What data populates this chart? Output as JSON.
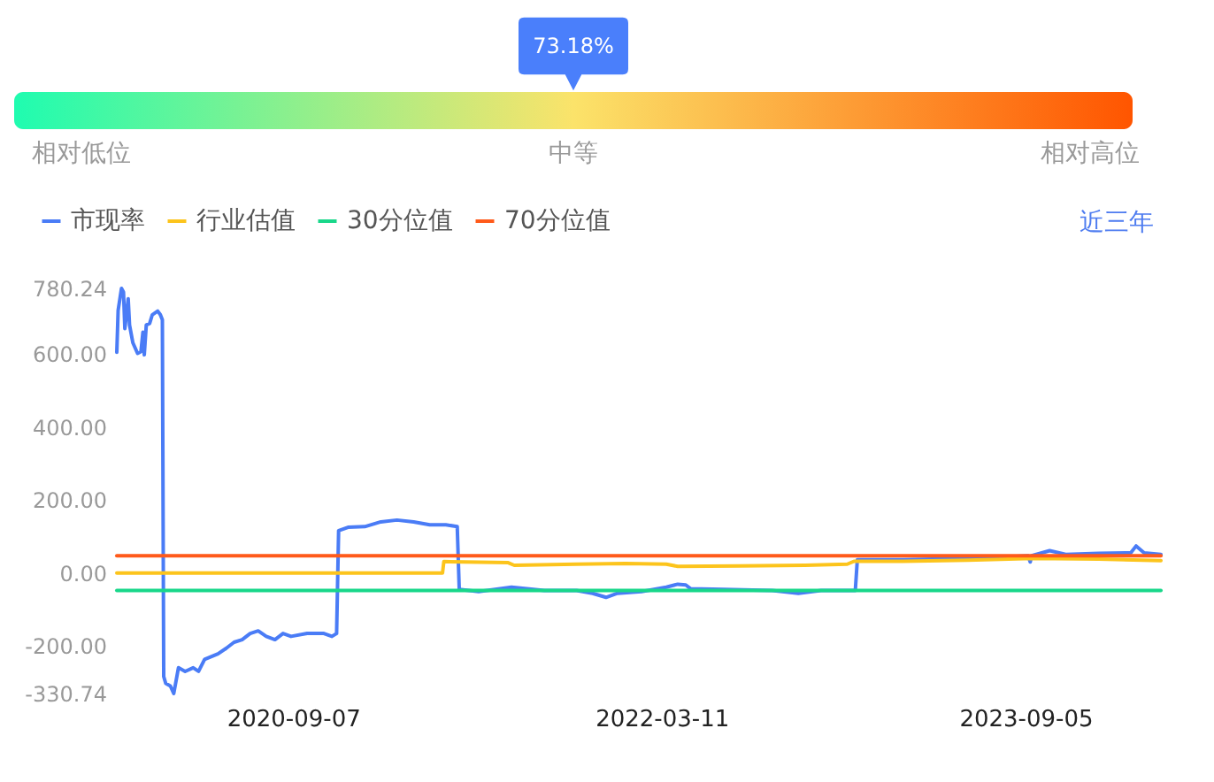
{
  "chart_data": [
    {
      "type": "other",
      "categories": [
        "相对低位",
        "中等",
        "相对高位"
      ],
      "colors": [
        "#1ffcb0",
        "#fbe36a",
        "#ff5500"
      ],
      "color": "#4a7ffb",
      "annotations": [
        {
          "text": "73.18%",
          "x": "中等"
        }
      ]
    },
    {
      "type": "line",
      "legend": "top left",
      "grid": false,
      "xlim": [
        "2019-12-19",
        "2024-03-25"
      ],
      "xticks": [
        "2020-09-07",
        "2022-03-11",
        "2023-09-05"
      ],
      "ylim": [
        -330.74,
        780.24
      ],
      "yticks": [
        780.24,
        {
          "value": 600,
          "label": "600.00"
        },
        {
          "value": 400,
          "label": "400.00"
        },
        {
          "value": 200,
          "label": "200.00"
        },
        {
          "value": 0,
          "label": "0.00"
        },
        {
          "value": -200,
          "label": "-200.00"
        },
        -330.74
      ],
      "annotations": [
        "近三年"
      ],
      "series": [
        {
          "name": "市现率",
          "color": "#4a7cf6",
          "x": [
            "2019-12-19",
            "2019-12-21",
            "2019-12-26",
            "2019-12-29",
            "2019-12-31",
            "2020-01-05",
            "2020-01-07",
            "2020-01-12",
            "2020-01-19",
            "2020-01-24",
            "2020-01-27",
            "2020-01-29",
            "2020-02-01",
            "2020-02-06",
            "2020-02-10",
            "2020-02-18",
            "2020-02-22",
            "2020-02-25",
            "2020-02-27",
            "2020-03-01",
            "2020-03-08",
            "2020-03-13",
            "2020-03-20",
            "2020-03-30",
            "2020-04-11",
            "2020-04-19",
            "2020-04-28",
            "2020-05-18",
            "2020-05-30",
            "2020-06-11",
            "2020-06-23",
            "2020-07-05",
            "2020-07-17",
            "2020-07-29",
            "2020-08-11",
            "2020-08-23",
            "2020-09-04",
            "2020-09-28",
            "2020-10-23",
            "2020-11-04",
            "2020-11-11",
            "2020-11-14",
            "2020-11-28",
            "2020-12-23",
            "2021-01-16",
            "2021-02-09",
            "2021-03-06",
            "2021-03-30",
            "2021-04-23",
            "2021-05-10",
            "2021-05-13",
            "2021-06-11",
            "2021-07-30",
            "2021-09-17",
            "2021-11-04",
            "2021-11-28",
            "2021-12-18",
            "2022-01-04",
            "2022-02-09",
            "2022-03-18",
            "2022-04-04",
            "2022-04-16",
            "2022-04-23",
            "2022-06-11",
            "2022-08-23",
            "2022-10-01",
            "2022-11-04",
            "2022-12-25",
            "2022-12-28",
            "2023-03-06",
            "2023-05-18",
            "2023-07-30",
            "2023-09-09",
            "2023-09-12",
            "2023-09-14",
            "2023-10-11",
            "2023-11-04",
            "2023-12-23",
            "2024-02-09",
            "2024-02-17",
            "2024-02-29",
            "2024-03-25"
          ],
          "values": [
            605,
            720,
            780.24,
            770,
            670,
            752,
            680,
            631,
            602,
            607,
            660,
            598,
            680,
            684,
            708,
            718,
            708,
            694,
            -284,
            -303,
            -310,
            -330.74,
            -260,
            -270,
            -260,
            -270,
            -237,
            -222,
            -207,
            -190,
            -183,
            -166,
            -159,
            -174,
            -183,
            -166,
            -174,
            -166,
            -166,
            -174,
            -166,
            116,
            125,
            127,
            140,
            145,
            140,
            132,
            132,
            127,
            -45,
            -51,
            -39,
            -48,
            -48,
            -56,
            -67,
            -56,
            -51,
            -39,
            -31,
            -33,
            -43,
            -45,
            -48,
            -56,
            -48,
            -48,
            36,
            36,
            39,
            43,
            47,
            30,
            47,
            61,
            51,
            54,
            55,
            74,
            55,
            51
          ]
        },
        {
          "name": "行业估值",
          "color": "#fcc41c",
          "x": [
            "2019-12-19",
            "2021-04-18",
            "2021-04-20",
            "2021-07-25",
            "2021-08-03",
            "2021-11-04",
            "2022-01-16",
            "2022-03-18",
            "2022-04-04",
            "2022-07-05",
            "2022-10-11",
            "2022-12-13",
            "2022-12-23",
            "2023-03-06",
            "2023-06-11",
            "2023-09-16",
            "2023-12-23",
            "2024-03-25"
          ],
          "values": [
            0,
            0,
            31,
            28,
            21,
            24,
            26,
            24,
            18,
            19,
            21,
            24,
            32,
            32,
            35,
            40,
            38,
            34
          ]
        },
        {
          "name": "30分位值",
          "color": "#19d78a",
          "x": [
            "2019-12-19",
            "2024-03-25"
          ],
          "values": [
            -48,
            -48
          ]
        },
        {
          "name": "70分位值",
          "color": "#ff5a1a",
          "x": [
            "2019-12-19",
            "2024-03-25"
          ],
          "values": [
            47,
            47
          ]
        }
      ]
    }
  ]
}
